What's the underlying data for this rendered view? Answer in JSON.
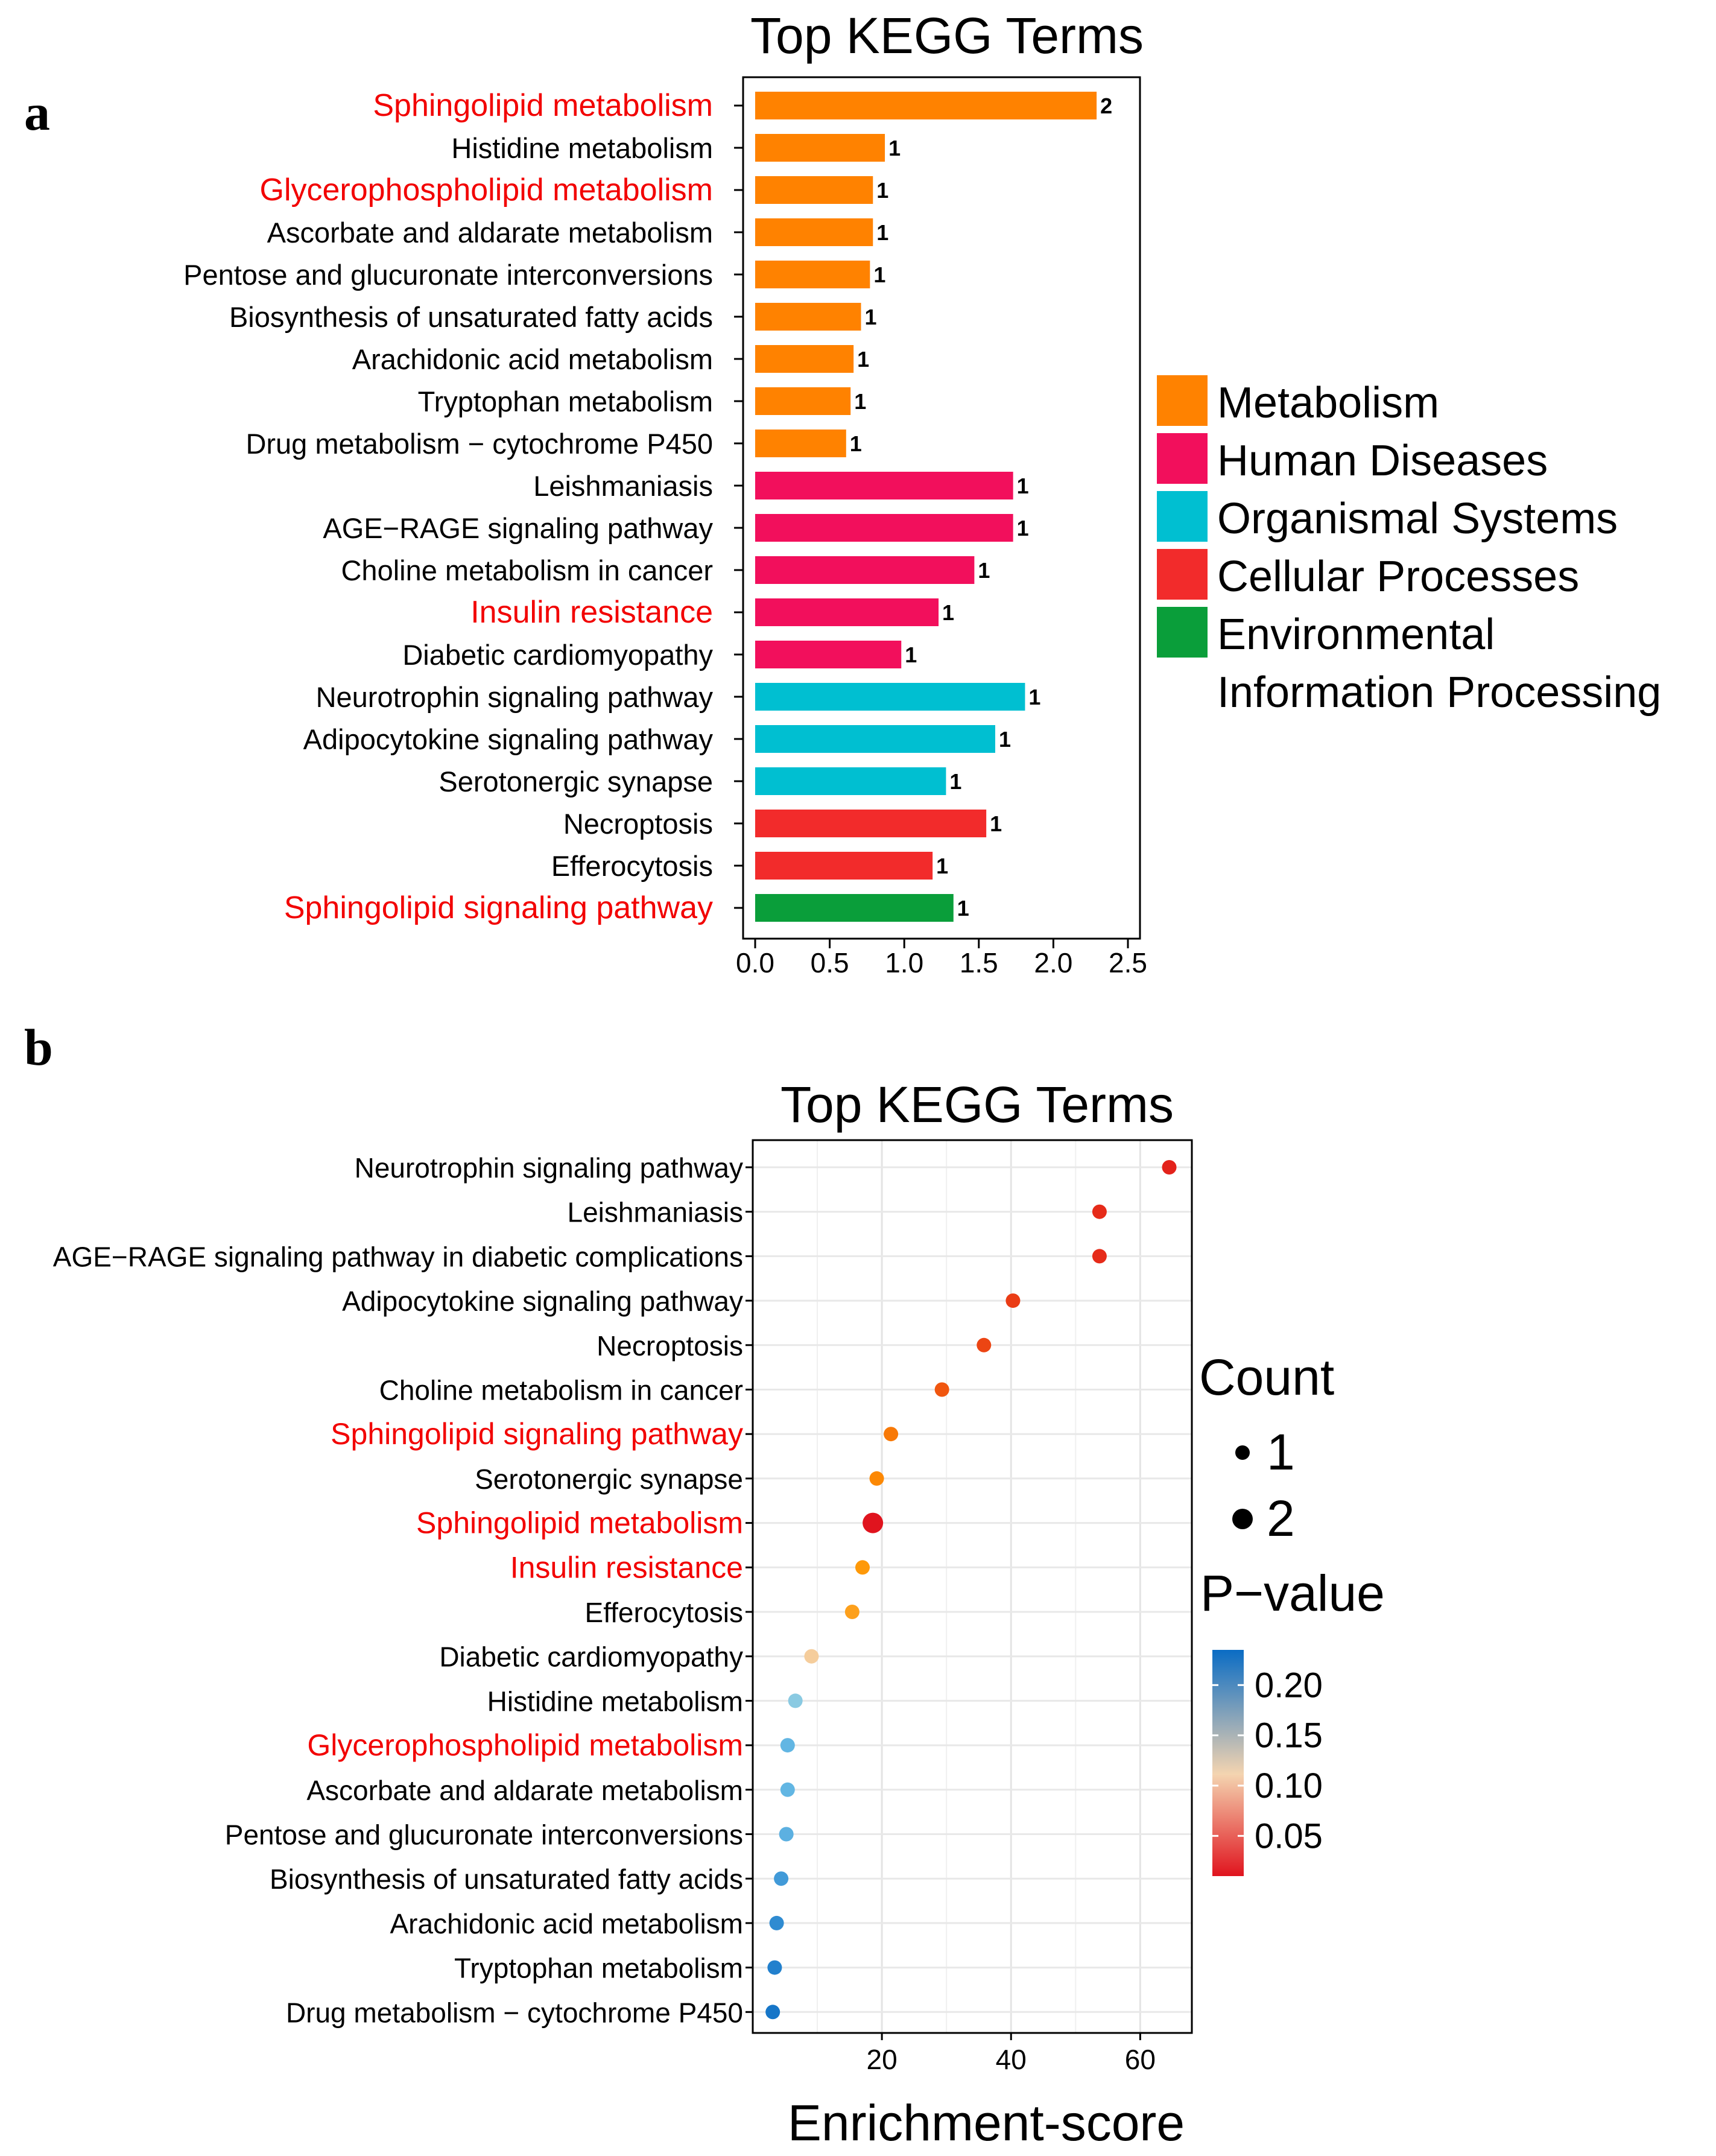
{
  "panels": {
    "a": {
      "label": "a",
      "title": "Top KEGG Terms",
      "chart_data": {
        "type": "bar",
        "orientation": "horizontal",
        "title": "Top KEGG Terms",
        "xlabel": "",
        "ylabel": "",
        "xlim": [
          0,
          2.5
        ],
        "xticks": [
          "0.0",
          "0.5",
          "1.0",
          "1.5",
          "2.0",
          "2.5"
        ],
        "xtick_values": [
          0,
          0.5,
          1.0,
          1.5,
          2.0,
          2.5
        ],
        "grid": false,
        "legend_position": "right",
        "bars": [
          {
            "term": "Sphingolipid metabolism",
            "value": 2.29,
            "count_label": "2",
            "category": "Metabolism",
            "highlight": true
          },
          {
            "term": "Histidine metabolism",
            "value": 0.87,
            "count_label": "1",
            "category": "Metabolism",
            "highlight": false
          },
          {
            "term": "Glycerophospholipid metabolism",
            "value": 0.79,
            "count_label": "1",
            "category": "Metabolism",
            "highlight": true
          },
          {
            "term": "Ascorbate and aldarate metabolism",
            "value": 0.79,
            "count_label": "1",
            "category": "Metabolism",
            "highlight": false
          },
          {
            "term": "Pentose and glucuronate interconversions",
            "value": 0.77,
            "count_label": "1",
            "category": "Metabolism",
            "highlight": false
          },
          {
            "term": "Biosynthesis of unsaturated fatty acids",
            "value": 0.71,
            "count_label": "1",
            "category": "Metabolism",
            "highlight": false
          },
          {
            "term": "Arachidonic acid metabolism",
            "value": 0.66,
            "count_label": "1",
            "category": "Metabolism",
            "highlight": false
          },
          {
            "term": "Tryptophan metabolism",
            "value": 0.64,
            "count_label": "1",
            "category": "Metabolism",
            "highlight": false
          },
          {
            "term": "Drug metabolism − cytochrome P450",
            "value": 0.61,
            "count_label": "1",
            "category": "Metabolism",
            "highlight": false
          },
          {
            "term": "Leishmaniasis",
            "value": 1.73,
            "count_label": "1",
            "category": "Human Diseases",
            "highlight": false
          },
          {
            "term": "AGE−RAGE signaling pathway ",
            "value": 1.73,
            "count_label": "1",
            "category": "Human Diseases",
            "highlight": false
          },
          {
            "term": "Choline metabolism in cancer",
            "value": 1.47,
            "count_label": "1",
            "category": "Human Diseases",
            "highlight": false
          },
          {
            "term": "Insulin resistance",
            "value": 1.23,
            "count_label": "1",
            "category": "Human Diseases",
            "highlight": true
          },
          {
            "term": "Diabetic cardiomyopathy",
            "value": 0.98,
            "count_label": "1",
            "category": "Human Diseases",
            "highlight": false
          },
          {
            "term": "Neurotrophin signaling pathway",
            "value": 1.81,
            "count_label": "1",
            "category": "Organismal Systems",
            "highlight": false
          },
          {
            "term": "Adipocytokine signaling pathway",
            "value": 1.61,
            "count_label": "1",
            "category": "Organismal Systems",
            "highlight": false
          },
          {
            "term": "Serotonergic synapse",
            "value": 1.28,
            "count_label": "1",
            "category": "Organismal Systems",
            "highlight": false
          },
          {
            "term": "Necroptosis",
            "value": 1.55,
            "count_label": "1",
            "category": "Cellular Processes",
            "highlight": false
          },
          {
            "term": "Efferocytosis",
            "value": 1.19,
            "count_label": "1",
            "category": "Cellular Processes",
            "highlight": false
          },
          {
            "term": "Sphingolipid signaling pathway",
            "value": 1.33,
            "count_label": "1",
            "category": "Environmental Information Processing",
            "highlight": true
          }
        ],
        "legend": [
          {
            "key": "Metabolism",
            "lines": [
              "Metabolism"
            ],
            "color": "#FF8200"
          },
          {
            "key": "Human Diseases",
            "lines": [
              "Human Diseases"
            ],
            "color": "#F20F5C"
          },
          {
            "key": "Organismal Systems",
            "lines": [
              "Organismal Systems"
            ],
            "color": "#00BFD1"
          },
          {
            "key": "Cellular Processes",
            "lines": [
              "Cellular Processes"
            ],
            "color": "#F22B2B"
          },
          {
            "key": "Environmental Information Processing",
            "lines": [
              "Environmental",
              "Information Processing"
            ],
            "color": "#0A9E3A"
          }
        ]
      }
    },
    "b": {
      "label": "b",
      "title": "Top KEGG Terms",
      "chart_data": {
        "type": "scatter",
        "title": "Top KEGG Terms",
        "xlabel": "Enrichment-score",
        "ylabel": "",
        "xlim": [
          0,
          68
        ],
        "xticks": [
          "20",
          "40",
          "60"
        ],
        "xtick_values": [
          20,
          40,
          60
        ],
        "grid": true,
        "legend_position": "right",
        "points": [
          {
            "term": "Neurotrophin signaling pathway",
            "x": 64.5,
            "count": 1,
            "pvalue": 0.015,
            "highlight": false
          },
          {
            "term": "Leishmaniasis",
            "x": 53.7,
            "count": 1,
            "pvalue": 0.018,
            "highlight": false
          },
          {
            "term": "AGE−RAGE signaling pathway in diabetic complications",
            "x": 53.7,
            "count": 1,
            "pvalue": 0.018,
            "highlight": false
          },
          {
            "term": "Adipocytokine signaling pathway",
            "x": 40.3,
            "count": 1,
            "pvalue": 0.024,
            "highlight": false
          },
          {
            "term": "Necroptosis",
            "x": 35.8,
            "count": 1,
            "pvalue": 0.027,
            "highlight": false
          },
          {
            "term": "Choline metabolism in cancer",
            "x": 29.3,
            "count": 1,
            "pvalue": 0.033,
            "highlight": false
          },
          {
            "term": "Sphingolipid signaling pathway",
            "x": 21.4,
            "count": 1,
            "pvalue": 0.045,
            "highlight": true
          },
          {
            "term": "Serotonergic synapse",
            "x": 19.2,
            "count": 1,
            "pvalue": 0.05,
            "highlight": false
          },
          {
            "term": "Sphingolipid metabolism",
            "x": 18.6,
            "count": 2,
            "pvalue": 0.005,
            "highlight": true
          },
          {
            "term": "Insulin resistance",
            "x": 17.0,
            "count": 1,
            "pvalue": 0.058,
            "highlight": true
          },
          {
            "term": "Efferocytosis",
            "x": 15.4,
            "count": 1,
            "pvalue": 0.064,
            "highlight": false
          },
          {
            "term": "Diabetic cardiomyopathy",
            "x": 9.1,
            "count": 1,
            "pvalue": 0.105,
            "highlight": false
          },
          {
            "term": "Histidine metabolism",
            "x": 6.6,
            "count": 1,
            "pvalue": 0.14,
            "highlight": false
          },
          {
            "term": "Glycerophospholipid metabolism",
            "x": 5.4,
            "count": 1,
            "pvalue": 0.163,
            "highlight": true
          },
          {
            "term": "Ascorbate and aldarate metabolism",
            "x": 5.4,
            "count": 1,
            "pvalue": 0.163,
            "highlight": false
          },
          {
            "term": "Pentose and glucuronate interconversions",
            "x": 5.2,
            "count": 1,
            "pvalue": 0.168,
            "highlight": false
          },
          {
            "term": "Biosynthesis of unsaturated fatty acids",
            "x": 4.4,
            "count": 1,
            "pvalue": 0.19,
            "highlight": false
          },
          {
            "term": "Arachidonic acid metabolism",
            "x": 3.7,
            "count": 1,
            "pvalue": 0.205,
            "highlight": false
          },
          {
            "term": "Tryptophan metabolism",
            "x": 3.4,
            "count": 1,
            "pvalue": 0.215,
            "highlight": false
          },
          {
            "term": "Drug metabolism − cytochrome P450",
            "x": 3.1,
            "count": 1,
            "pvalue": 0.225,
            "highlight": false
          }
        ],
        "size_legend": {
          "title": "Count",
          "items": [
            "1",
            "2"
          ]
        },
        "color_legend": {
          "title": "P−value",
          "min": 0.01,
          "max": 0.235,
          "ticks": [
            "0.20",
            "0.15",
            "0.10",
            "0.05"
          ],
          "tick_values": [
            0.2,
            0.15,
            0.1,
            0.05
          ],
          "low_color": "#E0141E",
          "mid_color": "#F4D4B0",
          "high_color": "#0A6CC4"
        }
      }
    }
  }
}
